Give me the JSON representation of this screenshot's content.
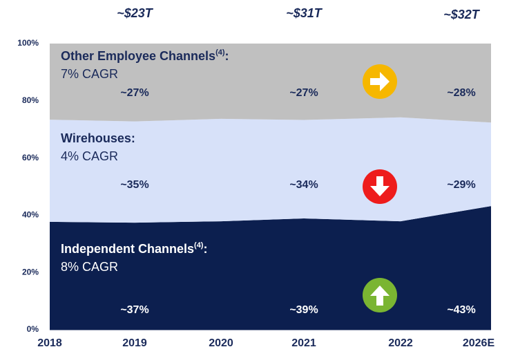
{
  "chart_data": {
    "type": "area",
    "stacked": true,
    "categories": [
      "2018",
      "2019",
      "2020",
      "2021",
      "2022",
      "2026E"
    ],
    "totals": [
      null,
      "~$23T",
      null,
      "~$31T",
      null,
      "~$32T"
    ],
    "ylim": [
      0,
      100
    ],
    "yticks": [
      {
        "value": 0,
        "label": "0%"
      },
      {
        "value": 20,
        "label": "20%"
      },
      {
        "value": 40,
        "label": "40%"
      },
      {
        "value": 60,
        "label": "60%"
      },
      {
        "value": 80,
        "label": "80%"
      },
      {
        "value": 100,
        "label": "100%"
      }
    ],
    "series": [
      {
        "name": "Independent Channels",
        "footnote": "(4)",
        "label_end": ":",
        "cagr": "8% CAGR",
        "color": "#0c1f4f",
        "text_color": "#ffffff",
        "values": [
          37.7,
          37.4,
          37.9,
          38.9,
          37.9,
          43.2
        ],
        "value_labels": [
          null,
          "~37%",
          null,
          "~39%",
          null,
          "~43%"
        ]
      },
      {
        "name": "Wirehouses",
        "label_end": ":",
        "cagr": "4% CAGR",
        "color": "#d7e1f9",
        "text_color": "#1a2a5a",
        "values": [
          35.7,
          35.4,
          35.8,
          34.4,
          36.3,
          29.2
        ],
        "value_labels": [
          null,
          "~35%",
          null,
          "~34%",
          null,
          "~29%"
        ]
      },
      {
        "name": "Other Employee Channels",
        "footnote": "(4)",
        "label_end": ":",
        "cagr": "7% CAGR",
        "color": "#c0c0c0",
        "text_color": "#1a2a5a",
        "values": [
          26.6,
          27.2,
          26.3,
          26.7,
          25.8,
          27.6
        ],
        "value_labels": [
          null,
          "~27%",
          null,
          "~27%",
          null,
          "~28%"
        ]
      }
    ]
  }
}
